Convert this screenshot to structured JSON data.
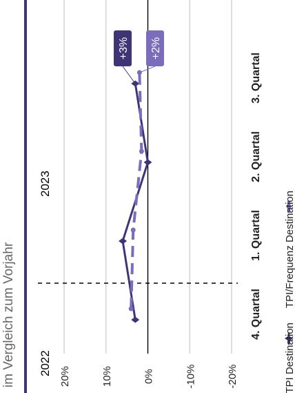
{
  "subtitle": "im Vergleich zum Vorjahr",
  "colors": {
    "frame": "#3d3480",
    "tpi": "#3e3476",
    "tpi_frequenz": "#7b6dbb",
    "grid": "#c8c8c8",
    "zero": "#000000",
    "divider": "#000000"
  },
  "chart_data": {
    "type": "line",
    "orientation": "rotated-90",
    "categories": [
      "4. Quartal",
      "1. Quartal",
      "2. Quartal",
      "3. Quartal"
    ],
    "years": [
      {
        "label": "2022",
        "first_category": 0
      },
      {
        "label": "2023",
        "first_category": 1
      }
    ],
    "ylim": [
      -20,
      20
    ],
    "yticks": [
      20,
      10,
      0,
      -10,
      -20
    ],
    "ytick_labels": [
      "20%",
      "10%",
      "0%",
      "-10%",
      "-20%"
    ],
    "series": [
      {
        "name": "TPI Destination",
        "values": [
          3,
          6,
          0,
          3
        ],
        "style": "solid",
        "marker": "diamond"
      },
      {
        "name": "TPI/Frequenz Destination",
        "values": [
          4,
          3.5,
          1.5,
          2
        ],
        "style": "dashed",
        "marker": "circle"
      }
    ],
    "end_labels": [
      "+3%",
      "+2%"
    ],
    "legend": [
      "TPI Destination",
      "TPI/Frequenz Destination"
    ],
    "legend_position": "bottom",
    "grid": true
  }
}
